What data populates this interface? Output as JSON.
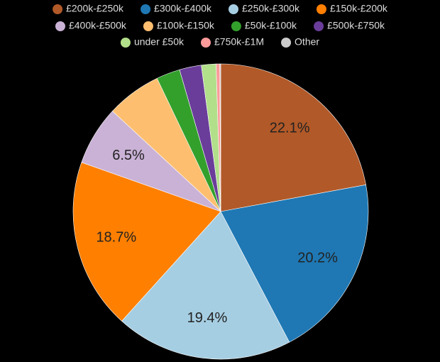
{
  "chart_data": {
    "type": "pie",
    "categories": [
      "£200k-£250k",
      "£300k-£400k",
      "£250k-£300k",
      "£150k-£200k",
      "£400k-£500k",
      "£100k-£150k",
      "£50k-£100k",
      "£500k-£750k",
      "under £50k",
      "£750k-£1M",
      "Other"
    ],
    "values": [
      22.1,
      20.2,
      19.4,
      18.7,
      6.5,
      6.0,
      2.6,
      2.4,
      1.6,
      0.4,
      0.1
    ],
    "value_labels": [
      "22.1%",
      "20.2%",
      "19.4%",
      "18.7%",
      "6.5%",
      null,
      null,
      null,
      null,
      null,
      null
    ],
    "colors": [
      "#b15928",
      "#1f78b4",
      "#a6cee3",
      "#ff7f00",
      "#cab2d6",
      "#fdbf6f",
      "#33a02c",
      "#6a3d9a",
      "#b2df8a",
      "#fb9a99",
      "#cccccc"
    ]
  }
}
